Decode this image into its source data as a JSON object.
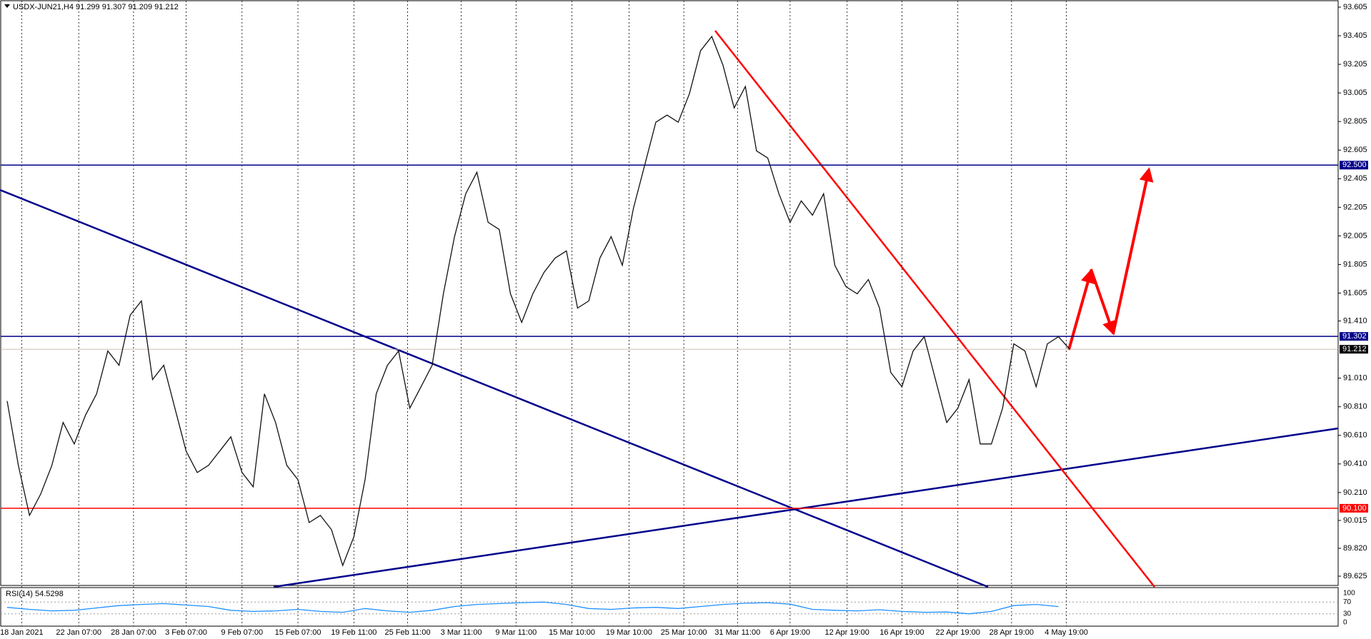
{
  "chart_data": [
    {
      "type": "line",
      "title": "USDX-JUN21,H4  91.299 91.307 91.209 91.212",
      "color": "#111111",
      "x": [
        0,
        1,
        2,
        3,
        4,
        5,
        6,
        7,
        8,
        9,
        10,
        11,
        12,
        13,
        14,
        15,
        16,
        17,
        18,
        19,
        20,
        21,
        22,
        23,
        24,
        25,
        26,
        27,
        28,
        29,
        30,
        31,
        32,
        33,
        34,
        35,
        36,
        37,
        38,
        39,
        40,
        41,
        42,
        43,
        44,
        45,
        46,
        47,
        48,
        49,
        50,
        51,
        52,
        53,
        54,
        55,
        56,
        57,
        58,
        59,
        60,
        61,
        62,
        63,
        64,
        65,
        66,
        67,
        68,
        69,
        70,
        71,
        72,
        73,
        74,
        75,
        76,
        77,
        78,
        79,
        80,
        81,
        82,
        83,
        84,
        85,
        86,
        87,
        88,
        89,
        90,
        91,
        92,
        93,
        94,
        95
      ],
      "values": [
        90.85,
        90.4,
        90.05,
        90.2,
        90.4,
        90.7,
        90.55,
        90.75,
        90.9,
        91.2,
        91.1,
        91.45,
        91.55,
        91.0,
        91.1,
        90.8,
        90.5,
        90.35,
        90.4,
        90.5,
        90.6,
        90.35,
        90.25,
        90.9,
        90.7,
        90.4,
        90.3,
        90.0,
        90.05,
        89.95,
        89.7,
        89.9,
        90.3,
        90.9,
        91.1,
        91.2,
        90.8,
        90.95,
        91.1,
        91.6,
        92.0,
        92.3,
        92.45,
        92.1,
        92.05,
        91.6,
        91.4,
        91.6,
        91.75,
        91.85,
        91.9,
        91.5,
        91.55,
        91.85,
        92.0,
        91.8,
        92.2,
        92.5,
        92.8,
        92.85,
        92.8,
        93.0,
        93.3,
        93.4,
        93.2,
        92.9,
        93.05,
        92.6,
        92.55,
        92.3,
        92.1,
        92.25,
        92.15,
        92.3,
        91.8,
        91.65,
        91.6,
        91.7,
        91.5,
        91.05,
        90.95,
        91.2,
        91.3,
        91.0,
        90.7,
        90.8,
        91.0,
        90.55,
        90.55,
        90.8,
        91.25,
        91.2,
        90.95,
        91.25,
        91.3,
        91.212
      ],
      "xlim": [
        0,
        119
      ],
      "xticks": [
        {
          "value": 1.3,
          "label": "18 Jan 2021"
        },
        {
          "value": 6.4,
          "label": "22 Jan 07:00"
        },
        {
          "value": 11.3,
          "label": "28 Jan 07:00"
        },
        {
          "value": 16,
          "label": "3 Feb 07:00"
        },
        {
          "value": 21,
          "label": "9 Feb 07:00"
        },
        {
          "value": 26,
          "label": "15 Feb 07:00"
        },
        {
          "value": 31,
          "label": "19 Feb 11:00"
        },
        {
          "value": 35.8,
          "label": "25 Feb 11:00"
        },
        {
          "value": 40.6,
          "label": "3 Mar 11:00"
        },
        {
          "value": 45.5,
          "label": "9 Mar 11:00"
        },
        {
          "value": 50.5,
          "label": "15 Mar 10:00"
        },
        {
          "value": 55.6,
          "label": "19 Mar 10:00"
        },
        {
          "value": 60.5,
          "label": "25 Mar 10:00"
        },
        {
          "value": 65.3,
          "label": "31 Mar 11:00"
        },
        {
          "value": 70,
          "label": "6 Apr 19:00"
        },
        {
          "value": 75.1,
          "label": "12 Apr 19:00"
        },
        {
          "value": 80,
          "label": "16 Apr 19:00"
        },
        {
          "value": 85,
          "label": "22 Apr 19:00"
        },
        {
          "value": 89.8,
          "label": "28 Apr 19:00"
        },
        {
          "value": 94.7,
          "label": "4 May 19:00"
        }
      ],
      "ylim": [
        89.625,
        93.605
      ],
      "yticks": [
        93.605,
        93.405,
        93.205,
        93.005,
        92.805,
        92.605,
        92.405,
        92.205,
        92.005,
        91.805,
        91.605,
        {
          "value": 91.41,
          "label": "91.410"
        },
        {
          "value": 91.01,
          "label": "91.010"
        },
        {
          "value": 90.81,
          "label": "90.810"
        },
        {
          "value": 90.61,
          "label": "90.610"
        },
        {
          "value": 90.41,
          "label": "90.410"
        },
        {
          "value": 90.21,
          "label": "90.210"
        },
        90.015,
        {
          "value": 89.82,
          "label": "89.820"
        },
        89.625
      ],
      "levels": [
        {
          "value": 92.5,
          "label": "92.500",
          "color": "#00008b"
        },
        {
          "value": 91.302,
          "label": "91.302",
          "color": "#00008b"
        },
        {
          "value": 90.1,
          "label": "90.100",
          "color": "#ff0000"
        }
      ],
      "last_price": 91.212,
      "last_price_color": "#000000"
    },
    {
      "type": "line",
      "title": "RSI(14) 54.5298",
      "color": "#1e90ff",
      "x": [
        0,
        2,
        4,
        6,
        8,
        10,
        12,
        14,
        16,
        18,
        20,
        22,
        24,
        26,
        28,
        30,
        32,
        34,
        36,
        38,
        40,
        42,
        44,
        46,
        48,
        50,
        52,
        54,
        56,
        58,
        60,
        62,
        64,
        66,
        68,
        70,
        72,
        74,
        76,
        78,
        80,
        82,
        84,
        86,
        88,
        90,
        92,
        94
      ],
      "values": [
        52,
        45,
        40,
        42,
        50,
        58,
        62,
        65,
        60,
        55,
        42,
        38,
        40,
        45,
        38,
        35,
        48,
        40,
        35,
        42,
        55,
        62,
        65,
        68,
        70,
        62,
        48,
        45,
        50,
        52,
        48,
        55,
        62,
        66,
        68,
        63,
        45,
        42,
        40,
        44,
        38,
        35,
        36,
        30,
        38,
        58,
        62,
        54.5298
      ],
      "xlim": [
        0,
        119
      ],
      "ylim": [
        0,
        100
      ],
      "yticks": [
        0,
        30,
        70,
        100
      ]
    }
  ]
}
